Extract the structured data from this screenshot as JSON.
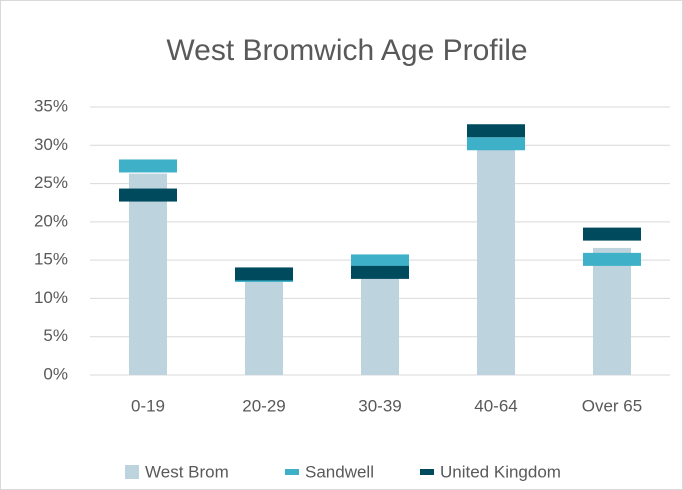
{
  "chart_data": {
    "type": "bar",
    "title": "West Bromwich Age Profile",
    "categories": [
      "0-19",
      "20-29",
      "30-39",
      "40-64",
      "Over 65"
    ],
    "series": [
      {
        "name": "West Brom",
        "color": "#bdd3dd",
        "values": [
          26.3,
          13.0,
          13.0,
          30.0,
          16.6
        ]
      },
      {
        "name": "Sandwell",
        "color": "#3eb1c8",
        "values": [
          27.3,
          13.0,
          14.9,
          30.2,
          15.1
        ]
      },
      {
        "name": "United Kingdom",
        "color": "#004a5e",
        "values": [
          23.5,
          13.2,
          13.4,
          31.9,
          18.4
        ]
      }
    ],
    "ylim": [
      0,
      35
    ],
    "yticks": [
      {
        "value": 0,
        "label": "0%"
      },
      {
        "value": 5,
        "label": "5%"
      },
      {
        "value": 10,
        "label": "10%"
      },
      {
        "value": 15,
        "label": "15%"
      },
      {
        "value": 20,
        "label": "20%"
      },
      {
        "value": 25,
        "label": "25%"
      },
      {
        "value": 30,
        "label": "30%"
      },
      {
        "value": 35,
        "label": "35%"
      }
    ],
    "grid": true
  }
}
